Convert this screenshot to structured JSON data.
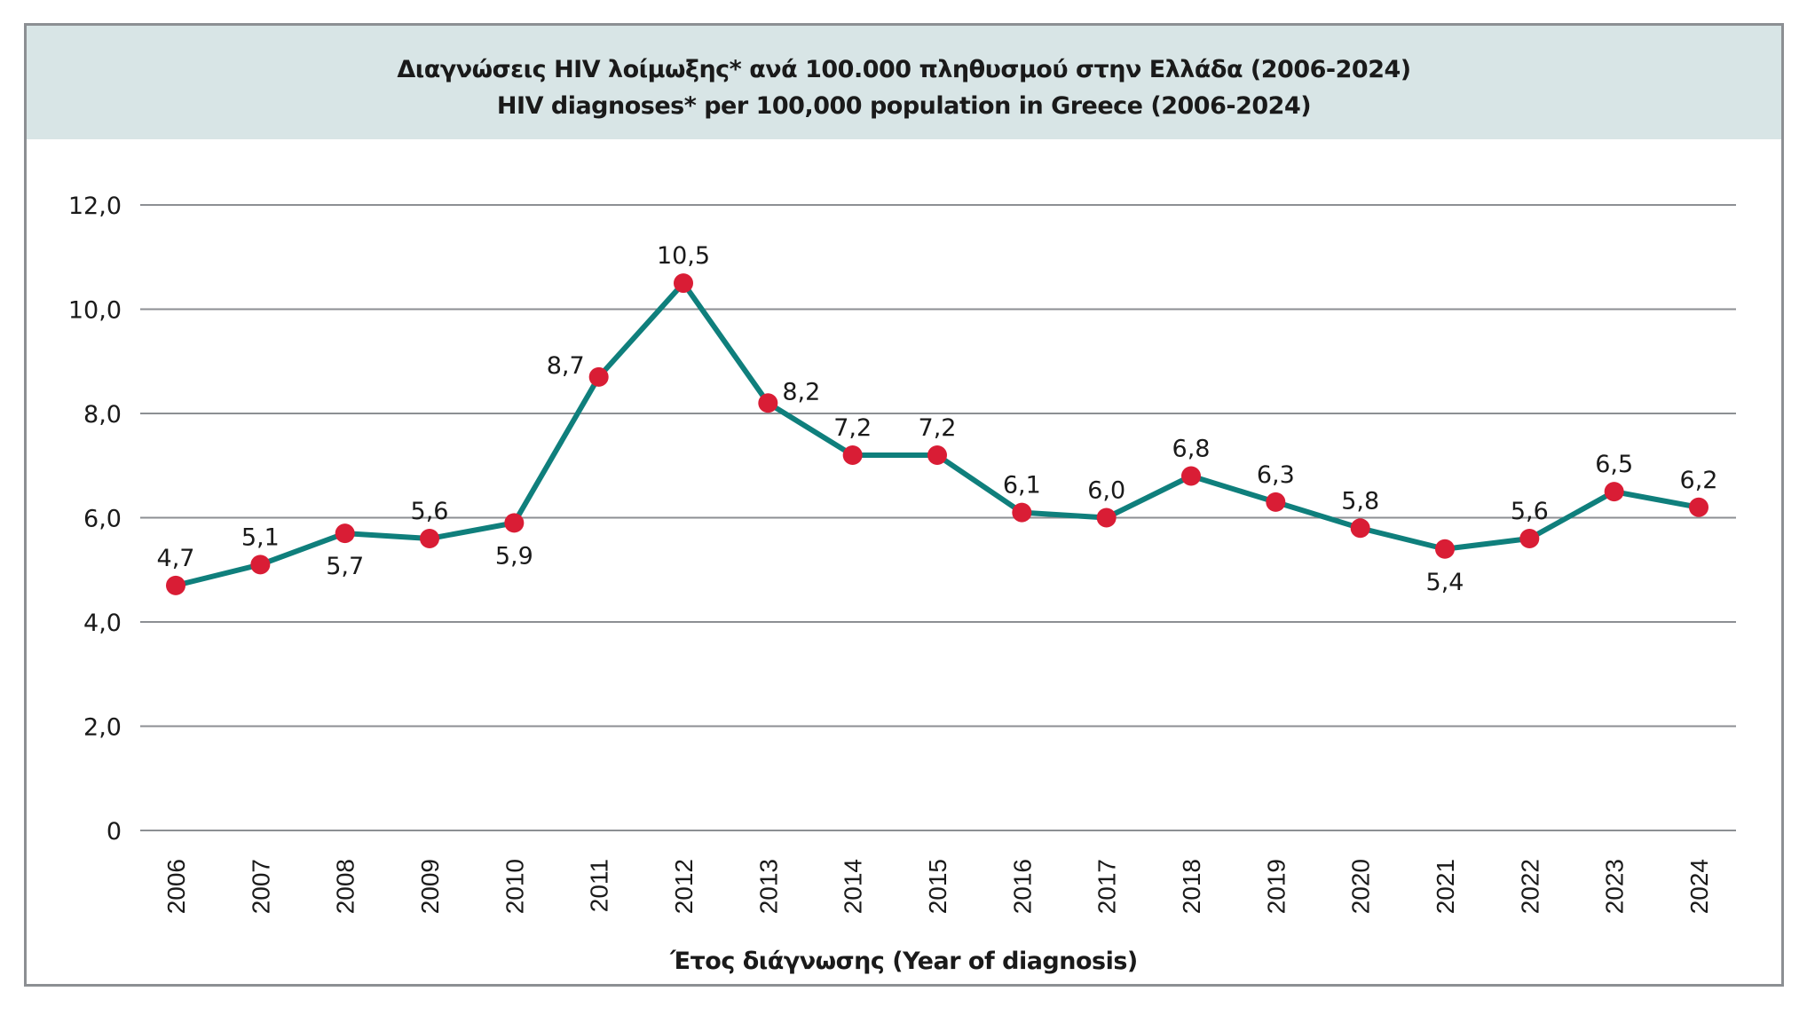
{
  "header": {
    "title_greek": "Διαγνώσεις HIV λοίμωξης* ανά 100.000 πληθυσμού στην Ελλάδα (2006-2024)",
    "title_english": "HIV diagnoses* per 100,000 population in Greece (2006-2024)"
  },
  "colors": {
    "header_background": "#d8e5e6",
    "line": "#0f7f7c",
    "marker": "#d91d35",
    "gridline": "#8c8f93",
    "frame": "#8c8f93"
  },
  "chart_data": {
    "type": "line",
    "title": "Διαγνώσεις HIV λοίμωξης* ανά 100.000 πληθυσμού στην Ελλάδα (2006-2024) / HIV diagnoses* per 100,000 population in Greece (2006-2024)",
    "xlabel": "Έτος διάγνωσης (Year of diagnosis)",
    "ylabel": "",
    "ylim": [
      0,
      12
    ],
    "grid": true,
    "legend": "none",
    "y_ticks": [
      0,
      2,
      4,
      6,
      8,
      10,
      12
    ],
    "y_tick_labels": [
      "0",
      "2,0",
      "4,0",
      "6,0",
      "8,0",
      "10,0",
      "12,0"
    ],
    "categories": [
      "2006",
      "2007",
      "2008",
      "2009",
      "2010",
      "2011",
      "2012",
      "2013",
      "2014",
      "2015",
      "2016",
      "2017",
      "2018",
      "2019",
      "2020",
      "2021",
      "2022",
      "2023",
      "2024"
    ],
    "series": [
      {
        "name": "HIV diagnoses per 100,000 population",
        "values": [
          4.7,
          5.1,
          5.7,
          5.6,
          5.9,
          8.7,
          10.5,
          8.2,
          7.2,
          7.2,
          6.1,
          6.0,
          6.8,
          6.3,
          5.8,
          5.4,
          5.6,
          6.5,
          6.2
        ],
        "data_labels": [
          "4,7",
          "5,1",
          "5,7",
          "5,6",
          "5,9",
          "8,7",
          "10,5",
          "8,2",
          "7,2",
          "7,2",
          "6,1",
          "6,0",
          "6,8",
          "6,3",
          "5,8",
          "5,4",
          "5,6",
          "6,5",
          "6,2"
        ],
        "label_positions": [
          "above",
          "above",
          "below",
          "above",
          "below",
          "left",
          "above",
          "right",
          "above",
          "above",
          "above",
          "above",
          "above",
          "above",
          "above",
          "below",
          "above",
          "above",
          "above"
        ]
      }
    ]
  }
}
